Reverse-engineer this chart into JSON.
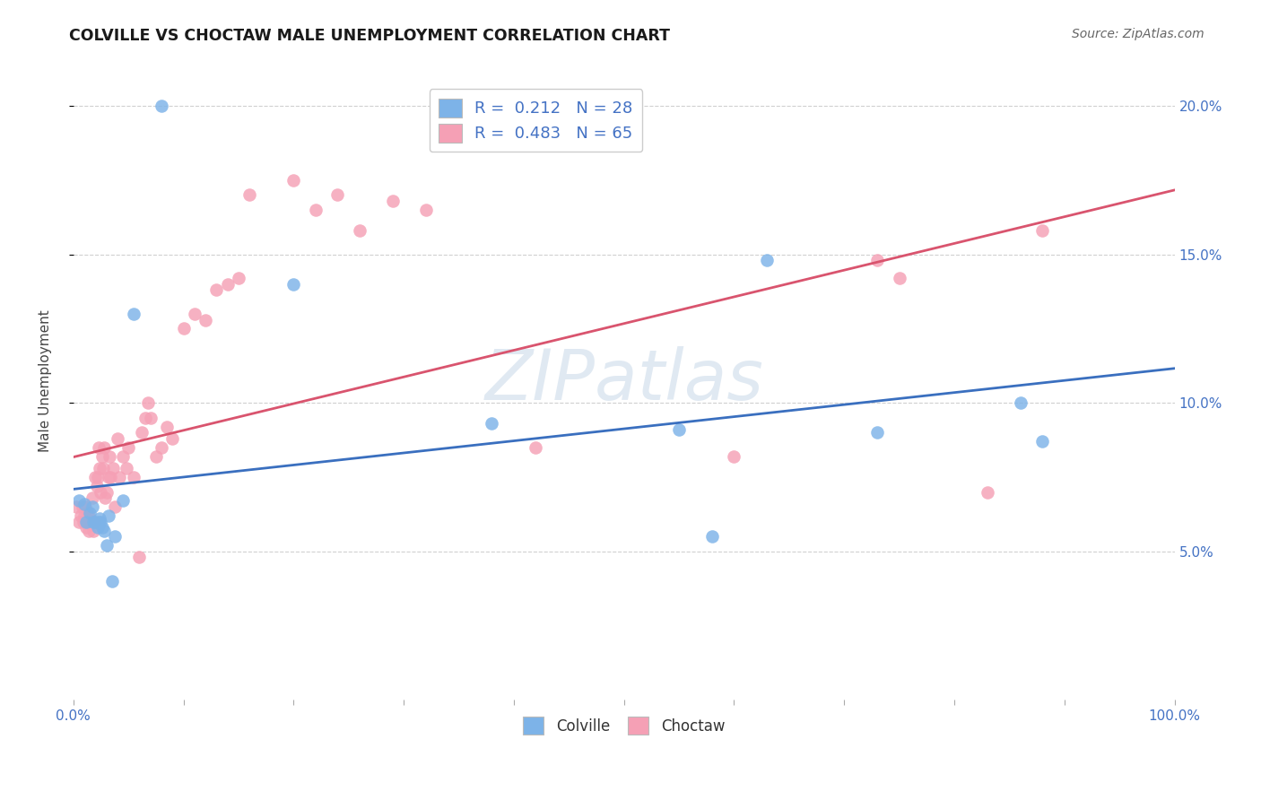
{
  "title": "COLVILLE VS CHOCTAW MALE UNEMPLOYMENT CORRELATION CHART",
  "source": "Source: ZipAtlas.com",
  "ylabel": "Male Unemployment",
  "xlim": [
    0.0,
    1.0
  ],
  "ylim": [
    0.0,
    0.215
  ],
  "yticks": [
    0.05,
    0.1,
    0.15,
    0.2
  ],
  "ytick_labels": [
    "5.0%",
    "10.0%",
    "15.0%",
    "20.0%"
  ],
  "colville_R": 0.212,
  "colville_N": 28,
  "choctaw_R": 0.483,
  "choctaw_N": 65,
  "colville_color": "#7db3e8",
  "choctaw_color": "#f5a0b5",
  "colville_line_color": "#3a6fbf",
  "choctaw_line_color": "#d9546e",
  "colville_x": [
    0.005,
    0.01,
    0.012,
    0.015,
    0.017,
    0.018,
    0.02,
    0.022,
    0.023,
    0.024,
    0.025,
    0.026,
    0.028,
    0.03,
    0.032,
    0.035,
    0.038,
    0.045,
    0.055,
    0.08,
    0.38,
    0.55,
    0.58,
    0.63,
    0.73,
    0.86,
    0.88,
    0.2
  ],
  "colville_y": [
    0.067,
    0.066,
    0.06,
    0.063,
    0.065,
    0.06,
    0.06,
    0.058,
    0.06,
    0.061,
    0.06,
    0.058,
    0.057,
    0.052,
    0.062,
    0.04,
    0.055,
    0.067,
    0.13,
    0.2,
    0.093,
    0.091,
    0.055,
    0.148,
    0.09,
    0.1,
    0.087,
    0.14
  ],
  "choctaw_x": [
    0.003,
    0.005,
    0.007,
    0.008,
    0.009,
    0.01,
    0.011,
    0.012,
    0.013,
    0.014,
    0.015,
    0.016,
    0.017,
    0.018,
    0.019,
    0.02,
    0.021,
    0.022,
    0.023,
    0.024,
    0.025,
    0.026,
    0.027,
    0.028,
    0.029,
    0.03,
    0.032,
    0.033,
    0.034,
    0.036,
    0.038,
    0.04,
    0.042,
    0.045,
    0.048,
    0.05,
    0.055,
    0.06,
    0.062,
    0.065,
    0.068,
    0.07,
    0.075,
    0.08,
    0.085,
    0.09,
    0.1,
    0.11,
    0.12,
    0.13,
    0.14,
    0.15,
    0.16,
    0.2,
    0.22,
    0.24,
    0.26,
    0.29,
    0.32,
    0.42,
    0.6,
    0.73,
    0.75,
    0.83,
    0.88
  ],
  "choctaw_y": [
    0.065,
    0.06,
    0.062,
    0.065,
    0.06,
    0.062,
    0.065,
    0.058,
    0.063,
    0.057,
    0.061,
    0.06,
    0.068,
    0.057,
    0.06,
    0.075,
    0.072,
    0.075,
    0.085,
    0.078,
    0.07,
    0.082,
    0.078,
    0.085,
    0.068,
    0.07,
    0.075,
    0.082,
    0.075,
    0.078,
    0.065,
    0.088,
    0.075,
    0.082,
    0.078,
    0.085,
    0.075,
    0.048,
    0.09,
    0.095,
    0.1,
    0.095,
    0.082,
    0.085,
    0.092,
    0.088,
    0.125,
    0.13,
    0.128,
    0.138,
    0.14,
    0.142,
    0.17,
    0.175,
    0.165,
    0.17,
    0.158,
    0.168,
    0.165,
    0.085,
    0.082,
    0.148,
    0.142,
    0.07,
    0.158
  ]
}
